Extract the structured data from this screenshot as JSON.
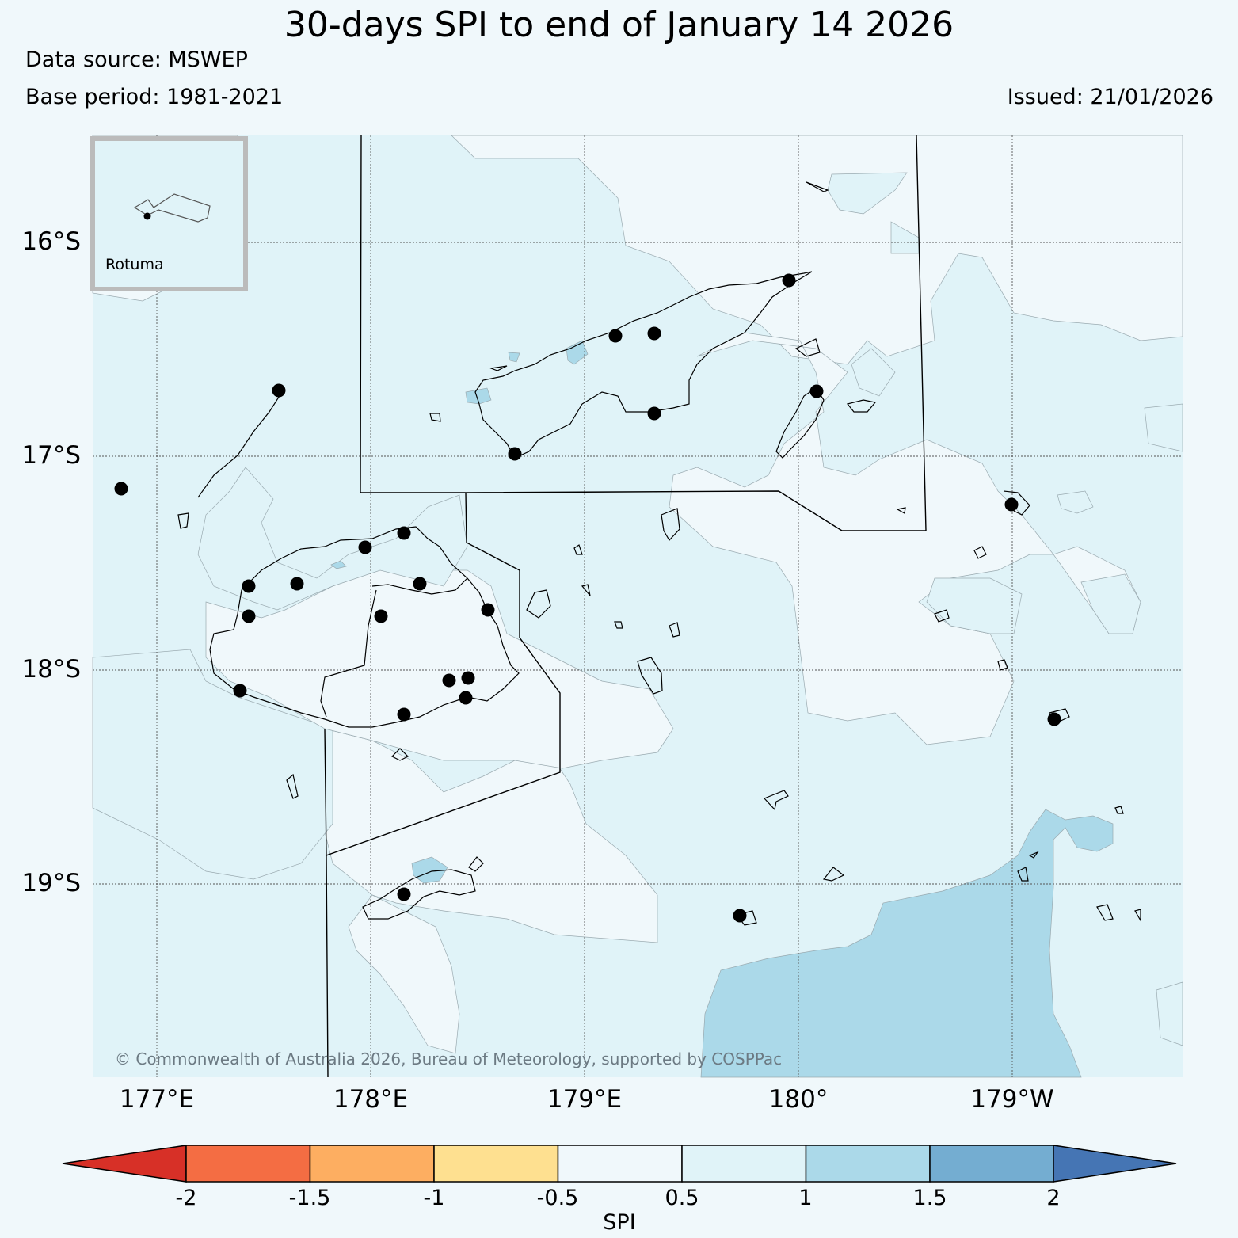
{
  "header": {
    "title": "30-days SPI to end of January 14 2026",
    "source": "Data source: MSWEP",
    "base_period": "Base period: 1981-2021",
    "issued": "Issued: 21/01/2026"
  },
  "map": {
    "lat_labels": [
      "16°S",
      "17°S",
      "18°S",
      "19°S"
    ],
    "lon_labels": [
      "177°E",
      "178°E",
      "179°E",
      "180°",
      "179°W"
    ],
    "inset_label": "Rotuma",
    "copyright": "© Commonwealth of Australia 2026, Bureau of Meteorology, supported by COSPPac"
  },
  "colorbar": {
    "title": "SPI",
    "ticks": [
      "-2",
      "-1.5",
      "-1",
      "-0.5",
      "0.5",
      "1",
      "1.5",
      "2"
    ],
    "colors": [
      "#d73027",
      "#f46d43",
      "#fdae61",
      "#fee090",
      "#f0f8fb",
      "#e0f3f8",
      "#abd9e9",
      "#74add1",
      "#4575b4"
    ]
  },
  "colors": {
    "background": "#f0f8fb",
    "spi_0_5_to_1": "#e0f3f8",
    "spi_1_to_1_5": "#abd9e9",
    "spi_1_5_to_2": "#74add1",
    "station_marker": "#000000"
  }
}
